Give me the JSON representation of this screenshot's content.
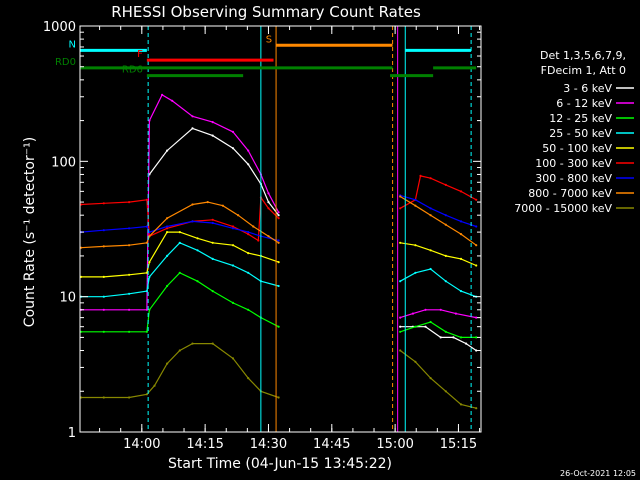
{
  "chart_data": {
    "type": "line",
    "title": "RHESSI Observing Summary Count Rates",
    "xlabel": "Start Time (04-Jun-15 13:45:22)",
    "ylabel": "Count Rate (s⁻¹ detector⁻¹)",
    "footer": "26-Oct-2021 12:05",
    "scale": "log",
    "xlim": [
      13.756,
      15.339
    ],
    "ylim": [
      1,
      1000
    ],
    "x_ticks": [
      {
        "t": 14.0,
        "label": "14:00"
      },
      {
        "t": 14.25,
        "label": "14:15"
      },
      {
        "t": 14.5,
        "label": "14:30"
      },
      {
        "t": 14.75,
        "label": "14:45"
      },
      {
        "t": 15.0,
        "label": "15:00"
      },
      {
        "t": 15.25,
        "label": "15:15"
      }
    ],
    "y_ticks": [
      {
        "v": 1,
        "label": "1"
      },
      {
        "v": 10,
        "label": "10"
      },
      {
        "v": 100,
        "label": "100"
      },
      {
        "v": 1000,
        "label": "1000"
      }
    ],
    "legend": {
      "header": [
        "Det 1,3,5,6,7,9,",
        "FDecim 1, Att 0"
      ],
      "position": "right"
    },
    "series": [
      {
        "name": "3 - 6 keV",
        "color": "#ffffff",
        "points": [
          [
            13.76,
            null
          ],
          [
            14.02,
            null
          ],
          [
            14.03,
            80
          ],
          [
            14.1,
            120
          ],
          [
            14.2,
            175
          ],
          [
            14.28,
            155
          ],
          [
            14.36,
            125
          ],
          [
            14.42,
            95
          ],
          [
            14.47,
            68
          ],
          [
            14.5,
            50
          ],
          [
            14.54,
            40
          ],
          [
            14.55,
            null
          ],
          [
            15.01,
            null
          ],
          [
            15.02,
            6
          ],
          [
            15.07,
            6
          ],
          [
            15.12,
            6
          ],
          [
            15.18,
            5
          ],
          [
            15.23,
            5
          ],
          [
            15.28,
            4.5
          ],
          [
            15.32,
            4
          ]
        ]
      },
      {
        "name": "6 - 12 keV",
        "color": "#ff00ff",
        "points": [
          [
            13.76,
            8
          ],
          [
            13.85,
            8
          ],
          [
            13.95,
            8
          ],
          [
            14.02,
            8
          ],
          [
            14.03,
            200
          ],
          [
            14.08,
            310
          ],
          [
            14.12,
            280
          ],
          [
            14.2,
            215
          ],
          [
            14.28,
            195
          ],
          [
            14.36,
            165
          ],
          [
            14.42,
            120
          ],
          [
            14.47,
            80
          ],
          [
            14.5,
            58
          ],
          [
            14.54,
            42
          ],
          [
            14.55,
            null
          ],
          [
            15.01,
            null
          ],
          [
            15.02,
            7
          ],
          [
            15.07,
            7.5
          ],
          [
            15.12,
            8
          ],
          [
            15.18,
            8
          ],
          [
            15.24,
            7.5
          ],
          [
            15.32,
            7
          ]
        ]
      },
      {
        "name": "12 - 25 keV",
        "color": "#00ff00",
        "points": [
          [
            13.76,
            5.5
          ],
          [
            13.85,
            5.5
          ],
          [
            13.95,
            5.5
          ],
          [
            14.02,
            5.5
          ],
          [
            14.03,
            8
          ],
          [
            14.1,
            12
          ],
          [
            14.15,
            15
          ],
          [
            14.22,
            13
          ],
          [
            14.28,
            11
          ],
          [
            14.36,
            9
          ],
          [
            14.42,
            8
          ],
          [
            14.47,
            7
          ],
          [
            14.54,
            6
          ],
          [
            14.55,
            null
          ],
          [
            15.01,
            null
          ],
          [
            15.02,
            5.5
          ],
          [
            15.08,
            6
          ],
          [
            15.14,
            6.5
          ],
          [
            15.2,
            5.5
          ],
          [
            15.26,
            5
          ],
          [
            15.32,
            5
          ]
        ]
      },
      {
        "name": "25 - 50 keV",
        "color": "#00ffff",
        "points": [
          [
            13.76,
            10
          ],
          [
            13.85,
            10
          ],
          [
            13.95,
            10.5
          ],
          [
            14.02,
            11
          ],
          [
            14.03,
            14
          ],
          [
            14.1,
            20
          ],
          [
            14.15,
            25
          ],
          [
            14.22,
            22
          ],
          [
            14.28,
            19
          ],
          [
            14.36,
            17
          ],
          [
            14.42,
            15
          ],
          [
            14.47,
            13
          ],
          [
            14.54,
            12
          ],
          [
            14.55,
            null
          ],
          [
            15.01,
            null
          ],
          [
            15.02,
            13
          ],
          [
            15.08,
            15
          ],
          [
            15.14,
            16
          ],
          [
            15.2,
            13
          ],
          [
            15.26,
            11
          ],
          [
            15.32,
            10
          ]
        ]
      },
      {
        "name": "50 - 100 keV",
        "color": "#ffff00",
        "points": [
          [
            13.76,
            14
          ],
          [
            13.85,
            14
          ],
          [
            13.95,
            14.5
          ],
          [
            14.02,
            15
          ],
          [
            14.03,
            18
          ],
          [
            14.1,
            30
          ],
          [
            14.15,
            30
          ],
          [
            14.22,
            27
          ],
          [
            14.28,
            25
          ],
          [
            14.36,
            24
          ],
          [
            14.42,
            21
          ],
          [
            14.47,
            20
          ],
          [
            14.54,
            18
          ],
          [
            14.55,
            null
          ],
          [
            15.01,
            null
          ],
          [
            15.02,
            25
          ],
          [
            15.08,
            24
          ],
          [
            15.14,
            22
          ],
          [
            15.2,
            20
          ],
          [
            15.26,
            19
          ],
          [
            15.32,
            17
          ]
        ]
      },
      {
        "name": "100 - 300 keV",
        "color": "#ff0000",
        "points": [
          [
            13.76,
            48
          ],
          [
            13.85,
            49
          ],
          [
            13.95,
            50
          ],
          [
            14.02,
            52
          ],
          [
            14.03,
            28
          ],
          [
            14.1,
            32
          ],
          [
            14.2,
            36
          ],
          [
            14.28,
            37
          ],
          [
            14.36,
            33
          ],
          [
            14.42,
            29
          ],
          [
            14.46,
            26
          ],
          [
            14.47,
            54
          ],
          [
            14.5,
            45
          ],
          [
            14.54,
            38
          ],
          [
            14.55,
            null
          ],
          [
            15.01,
            null
          ],
          [
            15.02,
            45
          ],
          [
            15.08,
            52
          ],
          [
            15.1,
            78
          ],
          [
            15.14,
            75
          ],
          [
            15.2,
            67
          ],
          [
            15.26,
            60
          ],
          [
            15.32,
            52
          ]
        ]
      },
      {
        "name": "300 - 800 keV",
        "color": "#0000ff",
        "points": [
          [
            13.76,
            30
          ],
          [
            13.85,
            31
          ],
          [
            13.95,
            32
          ],
          [
            14.02,
            33
          ],
          [
            14.03,
            30
          ],
          [
            14.1,
            33
          ],
          [
            14.2,
            36
          ],
          [
            14.28,
            35
          ],
          [
            14.36,
            32
          ],
          [
            14.42,
            30
          ],
          [
            14.47,
            28
          ],
          [
            14.54,
            26
          ],
          [
            14.55,
            null
          ],
          [
            15.01,
            null
          ],
          [
            15.02,
            56
          ],
          [
            15.08,
            52
          ],
          [
            15.14,
            45
          ],
          [
            15.2,
            40
          ],
          [
            15.26,
            36
          ],
          [
            15.32,
            33
          ]
        ]
      },
      {
        "name": "800 - 7000 keV",
        "color": "#ff8800",
        "points": [
          [
            13.76,
            23
          ],
          [
            13.85,
            23.5
          ],
          [
            13.95,
            24
          ],
          [
            14.02,
            25
          ],
          [
            14.03,
            28
          ],
          [
            14.1,
            38
          ],
          [
            14.2,
            48
          ],
          [
            14.26,
            50
          ],
          [
            14.32,
            47
          ],
          [
            14.38,
            40
          ],
          [
            14.44,
            33
          ],
          [
            14.5,
            28
          ],
          [
            14.54,
            25
          ],
          [
            14.55,
            null
          ],
          [
            15.01,
            null
          ],
          [
            15.02,
            55
          ],
          [
            15.08,
            47
          ],
          [
            15.14,
            40
          ],
          [
            15.2,
            34
          ],
          [
            15.26,
            29
          ],
          [
            15.32,
            24
          ]
        ]
      },
      {
        "name": "7000 - 15000 keV",
        "color": "#888800",
        "points": [
          [
            13.76,
            1.8
          ],
          [
            13.85,
            1.8
          ],
          [
            13.95,
            1.8
          ],
          [
            14.02,
            1.9
          ],
          [
            14.05,
            2.2
          ],
          [
            14.1,
            3.2
          ],
          [
            14.15,
            4
          ],
          [
            14.2,
            4.5
          ],
          [
            14.28,
            4.5
          ],
          [
            14.36,
            3.5
          ],
          [
            14.42,
            2.5
          ],
          [
            14.47,
            2
          ],
          [
            14.54,
            1.8
          ],
          [
            14.55,
            null
          ],
          [
            15.01,
            null
          ],
          [
            15.02,
            4
          ],
          [
            15.08,
            3.3
          ],
          [
            15.14,
            2.5
          ],
          [
            15.2,
            2
          ],
          [
            15.26,
            1.6
          ],
          [
            15.32,
            1.5
          ]
        ]
      }
    ],
    "flag_bars": [
      {
        "label": "N",
        "color": "#00ffff",
        "y": 660,
        "segments": [
          [
            13.756,
            14.02
          ],
          [
            15.04,
            15.3
          ]
        ]
      },
      {
        "label": "S",
        "color": "#ff8800",
        "y": 720,
        "segments": [
          [
            14.53,
            14.99
          ]
        ]
      },
      {
        "label": "F",
        "color": "#ff0000",
        "y": 560,
        "segments": [
          [
            14.02,
            14.52
          ]
        ]
      },
      {
        "label": "RD0",
        "color": "#008000",
        "y": 490,
        "segments": [
          [
            13.756,
            14.99
          ],
          [
            15.15,
            15.32
          ]
        ]
      },
      {
        "label": "RD6",
        "color": "#008000",
        "y": 430,
        "segments": [
          [
            14.02,
            14.4
          ],
          [
            14.98,
            15.15
          ]
        ]
      }
    ],
    "vlines": [
      {
        "t": 14.025,
        "color": "#00ffff",
        "dash": true
      },
      {
        "t": 14.47,
        "color": "#00ffff",
        "dash": false
      },
      {
        "t": 14.53,
        "color": "#ff8800",
        "dash": false
      },
      {
        "t": 14.99,
        "color": "#ff8800",
        "dash": true
      },
      {
        "t": 15.01,
        "color": "#ff00ff",
        "dash": false
      },
      {
        "t": 15.04,
        "color": "#00ffff",
        "dash": false
      },
      {
        "t": 15.3,
        "color": "#00ffff",
        "dash": true
      }
    ]
  }
}
